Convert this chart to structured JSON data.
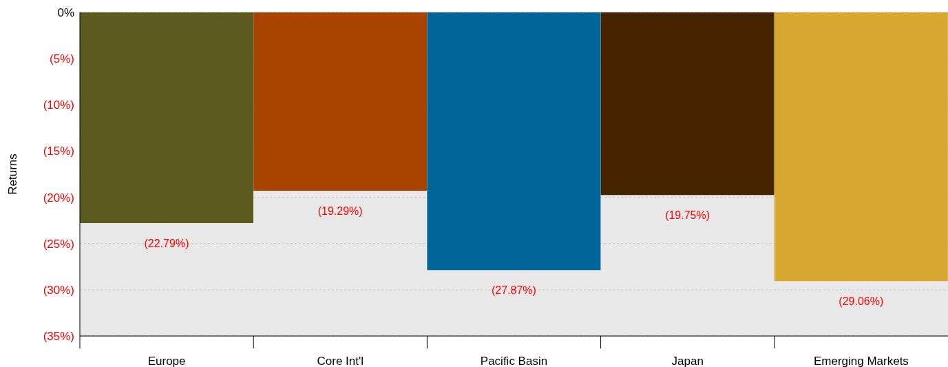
{
  "chart_data": {
    "type": "bar",
    "ylabel": "Returns",
    "categories": [
      "Europe",
      "Core Int'l",
      "Pacific Basin",
      "Japan",
      "Emerging Markets"
    ],
    "values": [
      -22.79,
      -19.29,
      -27.87,
      -19.75,
      -29.06
    ],
    "colors": [
      "#5b5b20",
      "#a84400",
      "#006699",
      "#472400",
      "#d9a830"
    ],
    "value_labels": [
      "(22.79%)",
      "(19.29%)",
      "(27.87%)",
      "(19.75%)",
      "(29.06%)"
    ],
    "ylim": [
      -35,
      0
    ],
    "yticks": [
      {
        "value": 0,
        "label": "0%"
      },
      {
        "value": -5,
        "label": "(5%)"
      },
      {
        "value": -10,
        "label": "(10%)"
      },
      {
        "value": -15,
        "label": "(15%)"
      },
      {
        "value": -20,
        "label": "(20%)"
      },
      {
        "value": -25,
        "label": "(25%)"
      },
      {
        "value": -30,
        "label": "(30%)"
      },
      {
        "value": -35,
        "label": "(35%)"
      }
    ],
    "grid": "y",
    "legend": false
  }
}
